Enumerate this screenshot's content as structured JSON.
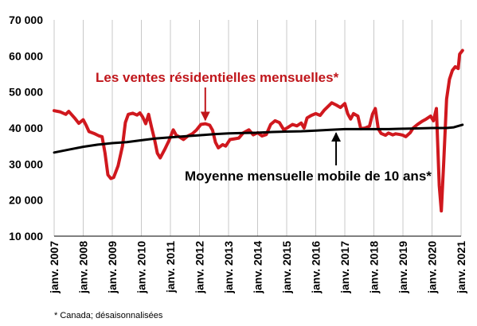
{
  "chart_data": {
    "type": "line",
    "title": "",
    "xlabel": "",
    "ylabel": "",
    "ylim": [
      10000,
      70000
    ],
    "y_ticks": [
      10000,
      20000,
      30000,
      40000,
      50000,
      60000,
      70000
    ],
    "y_tick_labels": [
      "10 000",
      "20 000",
      "30 000",
      "40 000",
      "50 000",
      "60 000",
      "70 000"
    ],
    "x_tick_labels": [
      "janv. 2007",
      "janv. 2008",
      "janv. 2009",
      "janv. 2010",
      "janv. 2011",
      "janv. 2012",
      "janv. 2013",
      "janv. 2014",
      "janv. 2015",
      "janv. 2016",
      "janv. 2017",
      "janv. 2018",
      "janv. 2019",
      "janv. 2020",
      "janv. 2021"
    ],
    "grid": "vertical",
    "colors": {
      "sales": "#d0181e",
      "average": "#000000",
      "annotation_red": "#c0161b",
      "grid": "#c8c8c8"
    },
    "series": [
      {
        "name": "Les ventes résidentielles mensuelles*",
        "color": "#d0181e",
        "points": [
          [
            2007.0,
            44800
          ],
          [
            2007.2,
            44500
          ],
          [
            2007.4,
            43800
          ],
          [
            2007.5,
            44600
          ],
          [
            2007.7,
            42800
          ],
          [
            2007.85,
            41300
          ],
          [
            2008.0,
            42300
          ],
          [
            2008.1,
            40800
          ],
          [
            2008.2,
            39000
          ],
          [
            2008.4,
            38400
          ],
          [
            2008.55,
            37800
          ],
          [
            2008.65,
            37600
          ],
          [
            2008.75,
            33000
          ],
          [
            2008.85,
            27000
          ],
          [
            2008.95,
            26000
          ],
          [
            2009.05,
            26300
          ],
          [
            2009.2,
            29500
          ],
          [
            2009.35,
            35000
          ],
          [
            2009.45,
            41500
          ],
          [
            2009.55,
            43800
          ],
          [
            2009.7,
            44100
          ],
          [
            2009.85,
            43600
          ],
          [
            2009.95,
            44200
          ],
          [
            2010.05,
            43000
          ],
          [
            2010.15,
            41200
          ],
          [
            2010.25,
            43800
          ],
          [
            2010.35,
            40200
          ],
          [
            2010.45,
            37000
          ],
          [
            2010.55,
            33000
          ],
          [
            2010.65,
            31700
          ],
          [
            2010.8,
            34000
          ],
          [
            2010.95,
            36500
          ],
          [
            2011.1,
            39500
          ],
          [
            2011.2,
            38000
          ],
          [
            2011.3,
            37600
          ],
          [
            2011.45,
            36800
          ],
          [
            2011.6,
            37800
          ],
          [
            2011.75,
            38400
          ],
          [
            2011.9,
            39500
          ],
          [
            2012.05,
            41000
          ],
          [
            2012.2,
            41200
          ],
          [
            2012.35,
            40800
          ],
          [
            2012.45,
            39400
          ],
          [
            2012.55,
            36000
          ],
          [
            2012.65,
            34500
          ],
          [
            2012.8,
            35400
          ],
          [
            2012.9,
            35000
          ],
          [
            2013.05,
            36800
          ],
          [
            2013.2,
            37000
          ],
          [
            2013.35,
            37200
          ],
          [
            2013.5,
            38600
          ],
          [
            2013.7,
            39500
          ],
          [
            2013.85,
            38100
          ],
          [
            2014.0,
            38700
          ],
          [
            2014.15,
            37800
          ],
          [
            2014.3,
            38200
          ],
          [
            2014.45,
            41000
          ],
          [
            2014.6,
            42000
          ],
          [
            2014.75,
            41500
          ],
          [
            2014.9,
            39500
          ],
          [
            2015.05,
            40200
          ],
          [
            2015.2,
            41000
          ],
          [
            2015.35,
            40600
          ],
          [
            2015.5,
            41400
          ],
          [
            2015.6,
            40000
          ],
          [
            2015.7,
            42800
          ],
          [
            2015.85,
            43500
          ],
          [
            2016.0,
            44000
          ],
          [
            2016.15,
            43500
          ],
          [
            2016.3,
            45000
          ],
          [
            2016.45,
            46200
          ],
          [
            2016.55,
            47000
          ],
          [
            2016.7,
            46400
          ],
          [
            2016.85,
            45700
          ],
          [
            2017.0,
            46800
          ],
          [
            2017.1,
            44000
          ],
          [
            2017.2,
            42500
          ],
          [
            2017.3,
            44000
          ],
          [
            2017.45,
            43300
          ],
          [
            2017.55,
            39800
          ],
          [
            2017.7,
            40000
          ],
          [
            2017.85,
            40500
          ],
          [
            2017.95,
            43800
          ],
          [
            2018.05,
            45400
          ],
          [
            2018.15,
            39800
          ],
          [
            2018.25,
            38500
          ],
          [
            2018.4,
            38000
          ],
          [
            2018.5,
            38600
          ],
          [
            2018.65,
            38100
          ],
          [
            2018.75,
            38400
          ],
          [
            2018.9,
            38200
          ],
          [
            2019.0,
            38000
          ],
          [
            2019.1,
            37600
          ],
          [
            2019.25,
            38700
          ],
          [
            2019.35,
            40000
          ],
          [
            2019.5,
            41000
          ],
          [
            2019.65,
            41800
          ],
          [
            2019.8,
            42500
          ],
          [
            2019.95,
            43300
          ],
          [
            2020.05,
            42000
          ],
          [
            2020.15,
            45400
          ],
          [
            2020.25,
            24000
          ],
          [
            2020.32,
            17000
          ],
          [
            2020.4,
            30000
          ],
          [
            2020.5,
            48000
          ],
          [
            2020.6,
            53500
          ],
          [
            2020.7,
            56000
          ],
          [
            2020.8,
            57000
          ],
          [
            2020.9,
            56500
          ],
          [
            2020.95,
            60500
          ],
          [
            2021.05,
            61500
          ]
        ]
      },
      {
        "name": "Moyenne mensuelle mobile de 10 ans*",
        "color": "#000000",
        "points": [
          [
            2007.0,
            33200
          ],
          [
            2007.5,
            34000
          ],
          [
            2008.0,
            34800
          ],
          [
            2008.5,
            35400
          ],
          [
            2009.0,
            35800
          ],
          [
            2009.5,
            36100
          ],
          [
            2010.0,
            36600
          ],
          [
            2010.5,
            37100
          ],
          [
            2011.0,
            37400
          ],
          [
            2011.5,
            37700
          ],
          [
            2012.0,
            38000
          ],
          [
            2012.5,
            38300
          ],
          [
            2013.0,
            38500
          ],
          [
            2013.5,
            38600
          ],
          [
            2014.0,
            38700
          ],
          [
            2014.5,
            38900
          ],
          [
            2015.0,
            39000
          ],
          [
            2015.5,
            39100
          ],
          [
            2016.0,
            39300
          ],
          [
            2016.5,
            39500
          ],
          [
            2017.0,
            39700
          ],
          [
            2017.5,
            39700
          ],
          [
            2018.0,
            39700
          ],
          [
            2018.5,
            39700
          ],
          [
            2019.0,
            39800
          ],
          [
            2019.5,
            39900
          ],
          [
            2020.0,
            40000
          ],
          [
            2020.5,
            40000
          ],
          [
            2020.75,
            40200
          ],
          [
            2021.05,
            40900
          ]
        ]
      }
    ],
    "annotations": [
      {
        "text": "Les ventes résidentielles mensuelles*",
        "series": 0,
        "arrow_to": [
          2012.2,
          41500
        ]
      },
      {
        "text": "Moyenne mensuelle mobile de 10 ans*",
        "series": 1,
        "arrow_to": [
          2016.7,
          39500
        ]
      }
    ]
  },
  "footnote": "* Canada; désaisonnalisées"
}
